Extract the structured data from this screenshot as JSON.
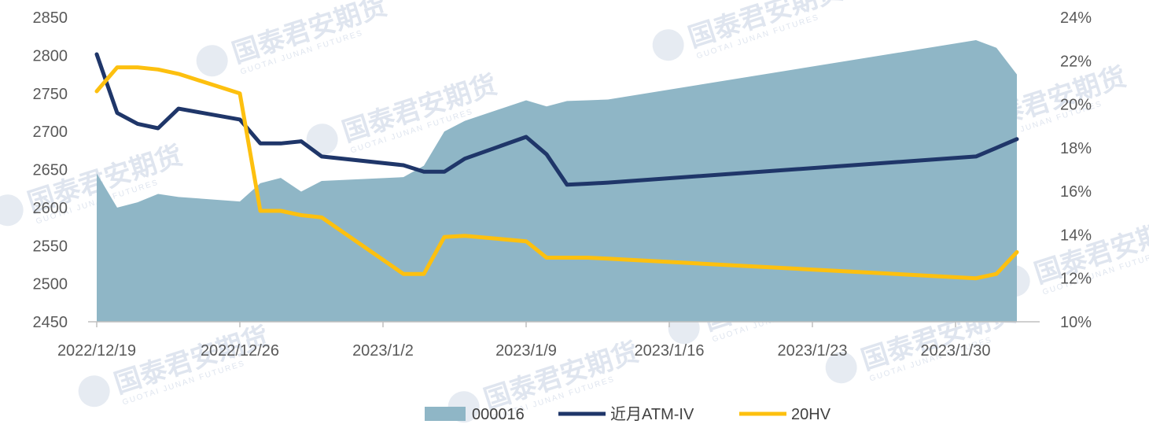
{
  "chart_data": {
    "type": "line",
    "title": "",
    "xlabel": "",
    "ylabel": "",
    "x_tick_labels": [
      "2022/12/19",
      "2022/12/26",
      "2023/1/2",
      "2023/1/9",
      "2023/1/16",
      "2023/1/23",
      "2023/1/30"
    ],
    "x_dates": [
      "2022/12/19",
      "2022/12/20",
      "2022/12/21",
      "2022/12/22",
      "2022/12/23",
      "2022/12/26",
      "2022/12/27",
      "2022/12/28",
      "2022/12/29",
      "2022/12/30",
      "2023/1/3",
      "2023/1/4",
      "2023/1/5",
      "2023/1/6",
      "2023/1/9",
      "2023/1/10",
      "2023/1/11",
      "2023/1/12",
      "2023/1/13",
      "2023/1/31",
      "2023/2/1",
      "2023/2/2"
    ],
    "y_left": {
      "ylim": [
        2450,
        2850
      ],
      "ticks": [
        "2850",
        "2800",
        "2750",
        "2700",
        "2650",
        "2600",
        "2550",
        "2500",
        "2450"
      ]
    },
    "y_right": {
      "ylim": [
        10,
        24
      ],
      "ticks": [
        "24%",
        "22%",
        "20%",
        "18%",
        "16%",
        "14%",
        "12%",
        "10%"
      ]
    },
    "series": [
      {
        "name": "000016",
        "type": "area",
        "axis": "left",
        "color": "#8fb6c6",
        "values": [
          2645,
          2600,
          2607,
          2618,
          2614,
          2608,
          2632,
          2639,
          2621,
          2635,
          2640,
          2655,
          2700,
          2714,
          2741,
          2733,
          2740,
          2741,
          2742,
          2820,
          2810,
          2775
        ]
      },
      {
        "name": "近月ATM-IV",
        "type": "line",
        "axis": "right",
        "color": "#1f3669",
        "values": [
          22.3,
          19.6,
          19.1,
          18.9,
          19.8,
          19.3,
          18.2,
          18.2,
          18.3,
          17.6,
          17.2,
          16.9,
          16.9,
          17.5,
          18.5,
          17.7,
          16.3,
          16.35,
          16.4,
          17.6,
          18.0,
          18.4
        ]
      },
      {
        "name": "20HV",
        "type": "line",
        "axis": "right",
        "color": "#fdc00f",
        "values": [
          20.6,
          21.7,
          21.7,
          21.6,
          21.4,
          20.5,
          15.1,
          15.1,
          14.9,
          14.8,
          12.2,
          12.2,
          13.9,
          13.95,
          13.7,
          12.95,
          12.95,
          12.95,
          12.9,
          12.0,
          12.2,
          13.2
        ]
      }
    ],
    "grid": false,
    "legend": "bottom"
  },
  "watermark": {
    "text": "国泰君安期货",
    "sub": "GUOTAI JUNAN FUTURES"
  }
}
